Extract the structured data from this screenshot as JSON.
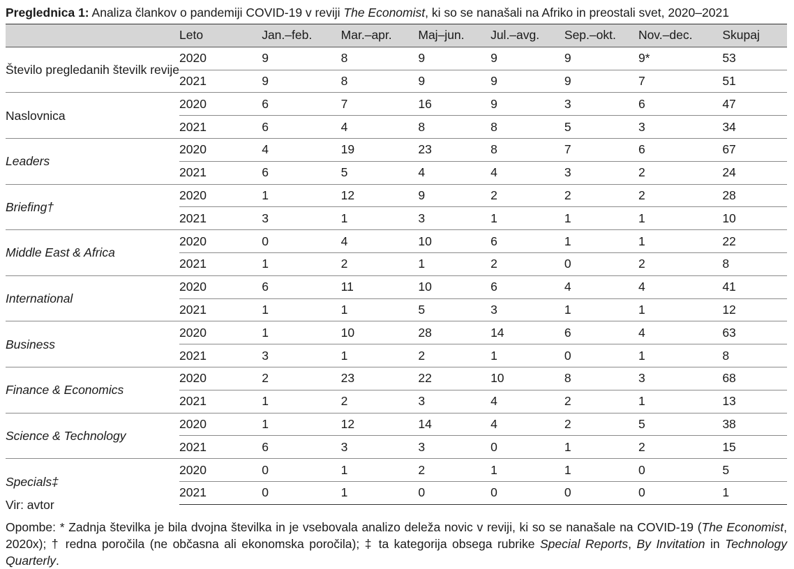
{
  "caption": {
    "label": "Preglednica 1:",
    "text_before": " Analiza člankov o pandemiji COVID-19 v reviji ",
    "magazine": "The Economist",
    "text_after": ", ki so se nanašali na Afriko in preostali svet, 2020–2021"
  },
  "table": {
    "columns": [
      "",
      "Leto",
      "Jan.–feb.",
      "Mar.–apr.",
      "Maj–jun.",
      "Jul.–avg.",
      "Sep.–okt.",
      "Nov.–dec.",
      "Skupaj"
    ],
    "groups": [
      {
        "category": "Število pregledanih številk revije",
        "italic": false,
        "rows": [
          {
            "year": "2020",
            "values": [
              "9",
              "8",
              "9",
              "9",
              "9",
              "9*",
              "53"
            ]
          },
          {
            "year": "2021",
            "values": [
              "9",
              "8",
              "9",
              "9",
              "9",
              "7",
              "51"
            ]
          }
        ]
      },
      {
        "category": "Naslovnica",
        "italic": false,
        "rows": [
          {
            "year": "2020",
            "values": [
              "6",
              "7",
              "16",
              "9",
              "3",
              "6",
              "47"
            ]
          },
          {
            "year": "2021",
            "values": [
              "6",
              "4",
              "8",
              "8",
              "5",
              "3",
              "34"
            ]
          }
        ]
      },
      {
        "category": "Leaders",
        "italic": true,
        "rows": [
          {
            "year": "2020",
            "values": [
              "4",
              "19",
              "23",
              "8",
              "7",
              "6",
              "67"
            ]
          },
          {
            "year": "2021",
            "values": [
              "6",
              "5",
              "4",
              "4",
              "3",
              "2",
              "24"
            ]
          }
        ]
      },
      {
        "category": "Briefing†",
        "italic": true,
        "rows": [
          {
            "year": "2020",
            "values": [
              "1",
              "12",
              "9",
              "2",
              "2",
              "2",
              "28"
            ]
          },
          {
            "year": "2021",
            "values": [
              "3",
              "1",
              "3",
              "1",
              "1",
              "1",
              "10"
            ]
          }
        ]
      },
      {
        "category": "Middle East & Africa",
        "italic": true,
        "rows": [
          {
            "year": "2020",
            "values": [
              "0",
              "4",
              "10",
              "6",
              "1",
              "1",
              "22"
            ]
          },
          {
            "year": "2021",
            "values": [
              "1",
              "2",
              "1",
              "2",
              "0",
              "2",
              "8"
            ]
          }
        ]
      },
      {
        "category": "International",
        "italic": true,
        "rows": [
          {
            "year": "2020",
            "values": [
              "6",
              "11",
              "10",
              "6",
              "4",
              "4",
              "41"
            ]
          },
          {
            "year": "2021",
            "values": [
              "1",
              "1",
              "5",
              "3",
              "1",
              "1",
              "12"
            ]
          }
        ]
      },
      {
        "category": "Business",
        "italic": true,
        "rows": [
          {
            "year": "2020",
            "values": [
              "1",
              "10",
              "28",
              "14",
              "6",
              "4",
              "63"
            ]
          },
          {
            "year": "2021",
            "values": [
              "3",
              "1",
              "2",
              "1",
              "0",
              "1",
              "8"
            ]
          }
        ]
      },
      {
        "category": "Finance & Economics",
        "italic": true,
        "rows": [
          {
            "year": "2020",
            "values": [
              "2",
              "23",
              "22",
              "10",
              "8",
              "3",
              "68"
            ]
          },
          {
            "year": "2021",
            "values": [
              "1",
              "2",
              "3",
              "4",
              "2",
              "1",
              "13"
            ]
          }
        ]
      },
      {
        "category": "Science & Technology",
        "italic": true,
        "rows": [
          {
            "year": "2020",
            "values": [
              "1",
              "12",
              "14",
              "4",
              "2",
              "5",
              "38"
            ]
          },
          {
            "year": "2021",
            "values": [
              "6",
              "3",
              "3",
              "0",
              "1",
              "2",
              "15"
            ]
          }
        ]
      },
      {
        "category": "Specials‡",
        "italic": true,
        "rows": [
          {
            "year": "2020",
            "values": [
              "0",
              "1",
              "2",
              "1",
              "1",
              "0",
              "5"
            ]
          },
          {
            "year": "2021",
            "values": [
              "0",
              "1",
              "0",
              "0",
              "0",
              "0",
              "1"
            ]
          }
        ]
      }
    ]
  },
  "source": "Vir: avtor",
  "note": {
    "p1": "Opombe: * Zadnja številka je bila dvojna številka in je vsebovala analizo deleža novic v reviji, ki so se nanašale na COVID-19 (",
    "p1_italic": "The Economist",
    "p2": ", 2020x); † redna poročila (ne občasna ali ekonomska poročila); ‡ ta kategorija obsega rubrike ",
    "p2_italic1": "Special Reports",
    "p3": ", ",
    "p3_italic": "By Invitation",
    "p4": " in ",
    "p4_italic": "Technology Quarterly",
    "p5": "."
  }
}
